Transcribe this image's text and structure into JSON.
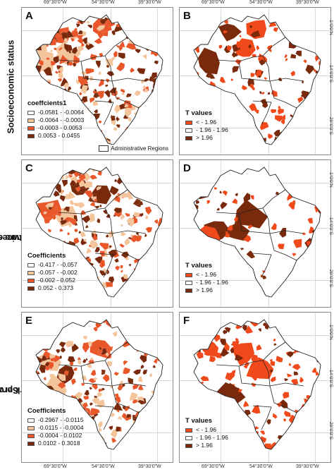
{
  "rows": [
    {
      "label_lines": [
        "Socioeconomic status"
      ]
    },
    {
      "label_lines": [
        "Structure of health",
        "services"
      ]
    },
    {
      "label_lines": [
        "Work proces in",
        "Health Services"
      ]
    }
  ],
  "axis": {
    "lon_ticks": [
      "69°30'0\"W",
      "54°30'0\"W",
      "39°30'0\"W"
    ],
    "lat_ticks": [
      "1°0'0\"N",
      "14°0'0\"S",
      "29°0'0\"S"
    ],
    "lat_ticks_right": [
      "1°0'0\"N",
      "14°0'0\"S",
      "29°0'0\"S"
    ]
  },
  "colors": {
    "c0": "#ffffff",
    "c1": "#f4c49b",
    "c2": "#e8562a",
    "c3": "#7a2a0c",
    "t_low": "#f04a1c",
    "t_mid": "#ffffff",
    "t_high": "#7a2a0c"
  },
  "panels": [
    {
      "letter": "A",
      "type": "coef",
      "legend_title": "coeffcients1",
      "items": [
        "-0.0581 - -0.0064",
        "-0.0064 - -0.0003",
        "-0.0003 - 0.0053",
        "0.0053 - 0.0455"
      ],
      "admin_label": "Administrative Regions"
    },
    {
      "letter": "B",
      "type": "tval",
      "legend_title": "T values",
      "items": [
        "< - 1.96",
        "- 1.96 - 1.96",
        "> 1.96"
      ]
    },
    {
      "letter": "C",
      "type": "coef",
      "legend_title": "Coefficients",
      "items": [
        "-0.417 - -0.057",
        "-0.057 - -0.002",
        "-0.002 - 0.052",
        "0.052 - 0.373"
      ]
    },
    {
      "letter": "D",
      "type": "tval",
      "legend_title": "T values",
      "items": [
        "< - 1.96",
        "- 1.96 - 1.96",
        "> 1.96"
      ]
    },
    {
      "letter": "E",
      "type": "coef",
      "legend_title": "Coefficients",
      "items": [
        "-0.2967 - -0.0115",
        "-0.0115 - -0.0004",
        "-0.0004 - 0.0102",
        "0.0102 - 0.3018"
      ]
    },
    {
      "letter": "F",
      "type": "tval",
      "legend_title": "T values",
      "items": [
        "< - 1.96",
        "- 1.96 - 1.96",
        "> 1.96"
      ]
    }
  ]
}
